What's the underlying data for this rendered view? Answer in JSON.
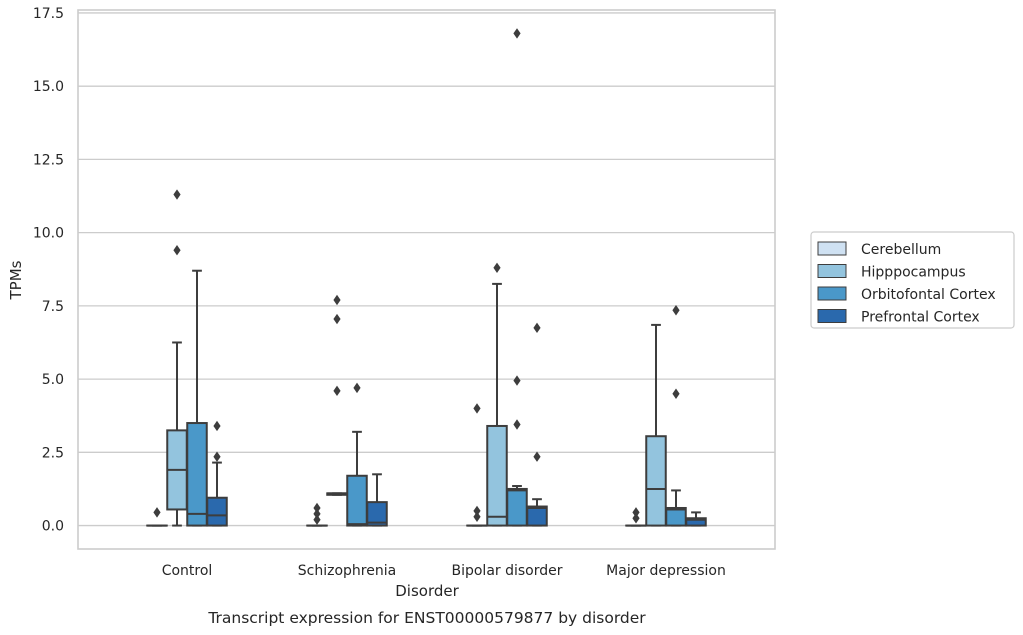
{
  "chart_data": {
    "type": "box",
    "title": "Transcript expression for ENST00000579877 by disorder",
    "xlabel": "Disorder",
    "ylabel": "TPMs",
    "ylim": [
      -0.8,
      17.6
    ],
    "yticks": [
      0.0,
      2.5,
      5.0,
      7.5,
      10.0,
      12.5,
      15.0,
      17.5
    ],
    "ytick_labels": [
      "0.0",
      "2.5",
      "5.0",
      "7.5",
      "10.0",
      "12.5",
      "15.0",
      "17.5"
    ],
    "grid": "horizontal",
    "legend_position": "right",
    "categories": [
      "Control",
      "Schizophrenia",
      "Bipolar disorder",
      "Major depression"
    ],
    "series": [
      {
        "name": "Cerebellum",
        "color": "#cfe1f2",
        "boxes": [
          {
            "whislo": 0.0,
            "q1": 0.0,
            "med": 0.0,
            "q3": 0.0,
            "whishi": 0.0,
            "fliers": [
              0.45
            ]
          },
          {
            "whislo": 0.0,
            "q1": 0.0,
            "med": 0.0,
            "q3": 0.0,
            "whishi": 0.0,
            "fliers": [
              0.2,
              0.4,
              0.6
            ]
          },
          {
            "whislo": 0.0,
            "q1": 0.0,
            "med": 0.0,
            "q3": 0.0,
            "whishi": 0.0,
            "fliers": [
              0.3,
              0.5,
              4.0
            ]
          },
          {
            "whislo": 0.0,
            "q1": 0.0,
            "med": 0.0,
            "q3": 0.0,
            "whishi": 0.0,
            "fliers": [
              0.25,
              0.45
            ]
          }
        ]
      },
      {
        "name": "Hipppocampus",
        "color": "#93c4de",
        "boxes": [
          {
            "whislo": 0.0,
            "q1": 0.55,
            "med": 1.9,
            "q3": 3.25,
            "whishi": 6.25,
            "fliers": [
              9.4,
              11.3
            ]
          },
          {
            "whislo": 1.05,
            "q1": 1.05,
            "med": 1.1,
            "q3": 1.1,
            "whishi": 1.1,
            "fliers": [
              4.6,
              7.05,
              7.7
            ]
          },
          {
            "whislo": 0.0,
            "q1": 0.0,
            "med": 0.3,
            "q3": 3.4,
            "whishi": 8.25,
            "fliers": [
              8.8
            ]
          },
          {
            "whislo": 0.0,
            "q1": 0.0,
            "med": 1.25,
            "q3": 3.05,
            "whishi": 6.85,
            "fliers": []
          }
        ]
      },
      {
        "name": "Orbitofontal Cortex",
        "color": "#4a98c9",
        "boxes": [
          {
            "whislo": 0.0,
            "q1": 0.0,
            "med": 0.4,
            "q3": 3.5,
            "whishi": 8.7,
            "fliers": []
          },
          {
            "whislo": 0.0,
            "q1": 0.0,
            "med": 0.05,
            "q3": 1.7,
            "whishi": 3.2,
            "fliers": [
              4.7
            ]
          },
          {
            "whislo": 0.0,
            "q1": 0.0,
            "med": 1.2,
            "q3": 1.25,
            "whishi": 1.35,
            "fliers": [
              3.45,
              4.95,
              16.8
            ]
          },
          {
            "whislo": 0.0,
            "q1": 0.0,
            "med": 0.55,
            "q3": 0.6,
            "whishi": 1.2,
            "fliers": [
              4.5,
              7.35
            ]
          }
        ]
      },
      {
        "name": "Prefrontal Cortex",
        "color": "#2a69ad",
        "boxes": [
          {
            "whislo": 0.0,
            "q1": 0.0,
            "med": 0.35,
            "q3": 0.95,
            "whishi": 2.15,
            "fliers": [
              2.35,
              3.4
            ]
          },
          {
            "whislo": 0.0,
            "q1": 0.0,
            "med": 0.1,
            "q3": 0.8,
            "whishi": 1.75,
            "fliers": []
          },
          {
            "whislo": 0.0,
            "q1": 0.0,
            "med": 0.6,
            "q3": 0.65,
            "whishi": 0.9,
            "fliers": [
              2.35,
              6.75
            ]
          },
          {
            "whislo": 0.0,
            "q1": 0.0,
            "med": 0.2,
            "q3": 0.25,
            "whishi": 0.45,
            "fliers": []
          }
        ]
      }
    ]
  }
}
